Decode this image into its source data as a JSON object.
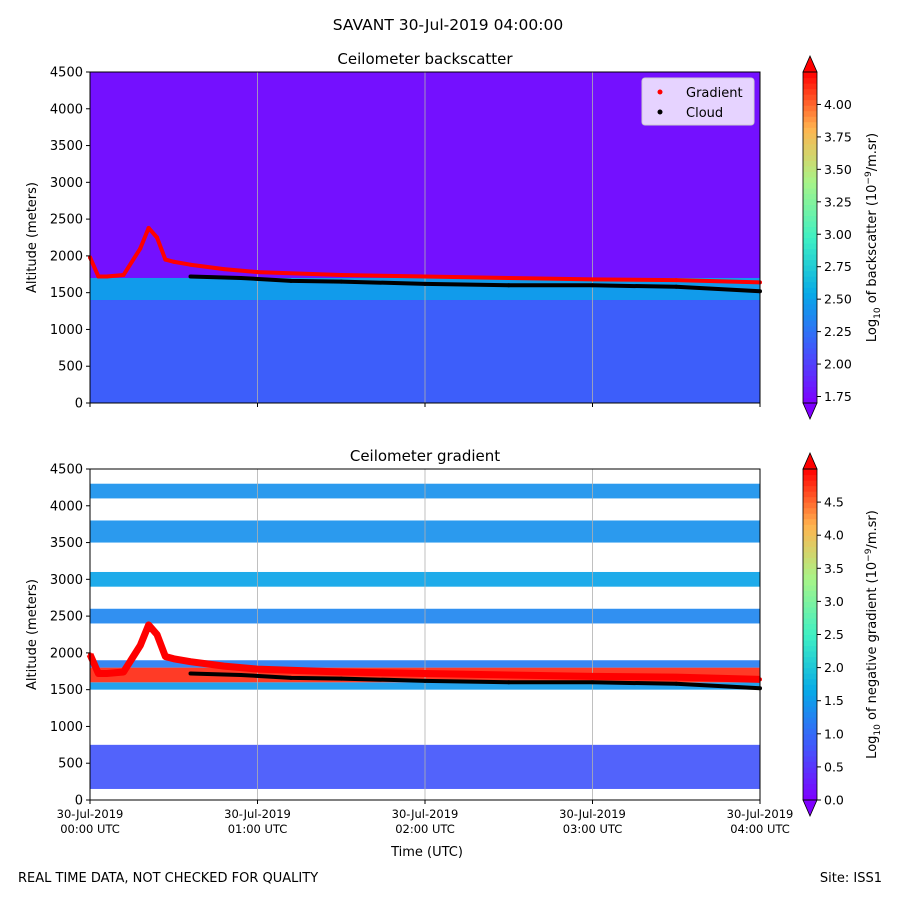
{
  "figure": {
    "suptitle": "SAVANT 30-Jul-2019 04:00:00",
    "footer_left": "REAL TIME DATA, NOT CHECKED FOR QUALITY",
    "footer_right": "Site: ISS1",
    "xlabel": "Time (UTC)"
  },
  "chart_data": [
    {
      "type": "heatmap",
      "title": "Ceilometer backscatter",
      "ylabel": "Altitude (meters)",
      "xlabel": "Time (UTC)",
      "xlim_hours": [
        0,
        4
      ],
      "ylim": [
        0,
        4500
      ],
      "yticks": [
        "0",
        "500",
        "1000",
        "1500",
        "2000",
        "2500",
        "3000",
        "3500",
        "4000",
        "4500"
      ],
      "xticks_hours": [
        0,
        1,
        2,
        3,
        4
      ],
      "xtick_labels": [],
      "grid": "vertical",
      "legend": {
        "position": "top-right",
        "entries": [
          {
            "label": "Gradient",
            "color": "#ff0000"
          },
          {
            "label": "Cloud",
            "color": "#000000"
          }
        ]
      },
      "colorbar": {
        "label_pre": "Log",
        "label_sub": "10",
        "label_mid": " of backscatter (10",
        "label_sup": "−9",
        "label_post": "/m.sr)",
        "range": [
          1.7,
          4.25
        ],
        "ticks": [
          "1.75",
          "2.00",
          "2.25",
          "2.50",
          "2.75",
          "3.00",
          "3.25",
          "3.50",
          "3.75",
          "4.00"
        ],
        "tick_values": [
          1.75,
          2.0,
          2.25,
          2.5,
          2.75,
          3.0,
          3.25,
          3.5,
          3.75,
          4.0
        ]
      },
      "layers": [
        {
          "alt_from": 0,
          "alt_to": 1400,
          "value": 2.15
        },
        {
          "alt_from": 1400,
          "alt_to": 1700,
          "value": 2.5
        },
        {
          "alt_from": 1700,
          "alt_to": 4500,
          "value": 1.75
        }
      ],
      "cloud_base": {
        "hours": [
          0.6,
          0.9,
          1.2,
          1.5,
          2.0,
          2.5,
          3.0,
          3.5,
          4.0
        ],
        "altitude": [
          1720,
          1700,
          1660,
          1650,
          1620,
          1600,
          1600,
          1580,
          1520
        ]
      },
      "gradient_layer": {
        "hours": [
          0,
          0.05,
          0.1,
          0.2,
          0.3,
          0.35,
          0.4,
          0.45,
          0.5,
          0.6,
          0.8,
          1.0,
          1.5,
          2.0,
          2.5,
          3.0,
          3.5,
          4.0
        ],
        "altitude": [
          1980,
          1720,
          1720,
          1740,
          2100,
          2380,
          2250,
          1950,
          1920,
          1880,
          1820,
          1780,
          1740,
          1720,
          1700,
          1680,
          1670,
          1640
        ]
      }
    },
    {
      "type": "heatmap",
      "title": "Ceilometer gradient",
      "ylabel": "Altitude (meters)",
      "xlabel": "Time (UTC)",
      "xlim_hours": [
        0,
        4
      ],
      "ylim": [
        0,
        4500
      ],
      "yticks": [
        "0",
        "500",
        "1000",
        "1500",
        "2000",
        "2500",
        "3000",
        "3500",
        "4000",
        "4500"
      ],
      "xticks_hours": [
        0,
        1,
        2,
        3,
        4
      ],
      "xtick_labels": [
        {
          "line1": "30-Jul-2019",
          "line2": "00:00 UTC"
        },
        {
          "line1": "30-Jul-2019",
          "line2": "01:00 UTC"
        },
        {
          "line1": "30-Jul-2019",
          "line2": "02:00 UTC"
        },
        {
          "line1": "30-Jul-2019",
          "line2": "03:00 UTC"
        },
        {
          "line1": "30-Jul-2019",
          "line2": "04:00 UTC"
        }
      ],
      "grid": "vertical",
      "colorbar": {
        "label_pre": "Log",
        "label_sub": "10",
        "label_mid": " of negative gradient (10",
        "label_sup": "−9",
        "label_post": "/m.sr)",
        "range": [
          0,
          5.0
        ],
        "ticks": [
          "0.0",
          "0.5",
          "1.0",
          "1.5",
          "2.0",
          "2.5",
          "3.0",
          "3.5",
          "4.0",
          "4.5"
        ],
        "tick_values": [
          0.0,
          0.5,
          1.0,
          1.5,
          2.0,
          2.5,
          3.0,
          3.5,
          4.0,
          4.5
        ]
      },
      "layers": [
        {
          "alt_from": 150,
          "alt_to": 750,
          "value": 0.8
        },
        {
          "alt_from": 1500,
          "alt_to": 1600,
          "value": 1.5
        },
        {
          "alt_from": 1600,
          "alt_to": 1800,
          "value": 4.8
        },
        {
          "alt_from": 1800,
          "alt_to": 1900,
          "value": 1.2
        },
        {
          "alt_from": 2400,
          "alt_to": 2600,
          "value": 1.3
        },
        {
          "alt_from": 2900,
          "alt_to": 3100,
          "value": 1.6
        },
        {
          "alt_from": 3500,
          "alt_to": 3800,
          "value": 1.4
        },
        {
          "alt_from": 4100,
          "alt_to": 4300,
          "value": 1.4
        }
      ],
      "cloud_base": {
        "hours": [
          0.6,
          0.9,
          1.2,
          1.5,
          2.0,
          2.5,
          3.0,
          3.5,
          4.0
        ],
        "altitude": [
          1720,
          1700,
          1660,
          1650,
          1620,
          1600,
          1600,
          1580,
          1520
        ]
      },
      "gradient_layer": {
        "hours": [
          0,
          0.05,
          0.1,
          0.2,
          0.3,
          0.35,
          0.4,
          0.45,
          0.5,
          0.6,
          0.8,
          1.0,
          1.5,
          2.0,
          2.5,
          3.0,
          3.5,
          4.0
        ],
        "altitude": [
          1980,
          1720,
          1720,
          1740,
          2100,
          2380,
          2250,
          1950,
          1920,
          1880,
          1820,
          1780,
          1740,
          1720,
          1700,
          1680,
          1670,
          1640
        ]
      }
    }
  ]
}
